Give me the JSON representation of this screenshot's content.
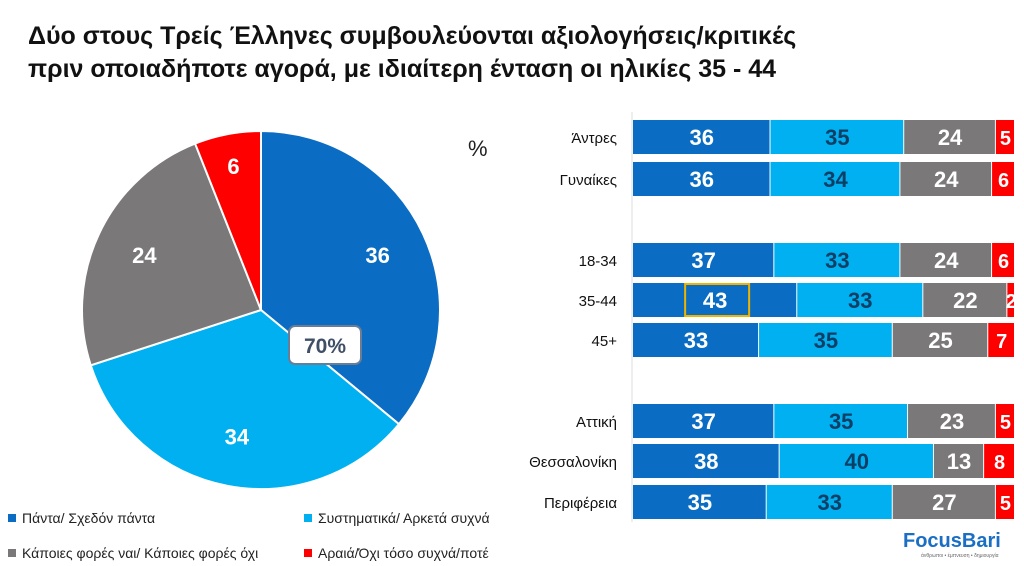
{
  "title": [
    "Δύο στους Τρείς Έλληνες συμβουλεύονται αξιολογήσεις/κριτικές",
    "πριν οποιαδήποτε αγορά, με ιδιαίτερη ένταση οι ηλικίες 35 - 44"
  ],
  "unit_label": "%",
  "logo": {
    "name": "FocusBari",
    "tagline": "άνθρωποι • έμπνευση • δημιουργία"
  },
  "colors": {
    "always": "#0a6cc2",
    "often": "#00b0f0",
    "sometimes": "#7a7878",
    "rarely": "#ff0000"
  },
  "chart_data": [
    {
      "type": "pie",
      "categories": [
        "Πάντα/ Σχεδόν πάντα",
        "Συστηματικά/ Αρκετά συχνά",
        "Κάποιες φορές ναι/ Κάποιες φορές όχι",
        "Αραιά/Όχι τόσο συχνά/ποτέ"
      ],
      "values": [
        36,
        34,
        24,
        6
      ],
      "annotation": "70%",
      "legend": "bottom"
    },
    {
      "type": "bar",
      "stacked": true,
      "orientation": "horizontal",
      "categories": [
        "Άντρες",
        "Γυναίκες",
        "18-34",
        "35-44",
        "45+",
        "Αττική",
        "Θεσσαλονίκη",
        "Περιφέρεια"
      ],
      "series": [
        {
          "name": "Πάντα/ Σχεδόν πάντα",
          "values": [
            36,
            36,
            37,
            43,
            33,
            37,
            38,
            35
          ]
        },
        {
          "name": "Συστηματικά/ Αρκετά συχνά",
          "values": [
            35,
            34,
            33,
            33,
            35,
            35,
            40,
            33
          ]
        },
        {
          "name": "Κάποιες φορές ναι/ Κάποιες φορές όχι",
          "values": [
            24,
            24,
            24,
            22,
            25,
            23,
            13,
            27
          ]
        },
        {
          "name": "Αραιά/Όχι τόσο συχνά/ποτέ",
          "values": [
            5,
            6,
            6,
            2,
            7,
            5,
            8,
            5
          ]
        }
      ],
      "highlight": {
        "category": "35-44",
        "series": 0
      }
    }
  ]
}
